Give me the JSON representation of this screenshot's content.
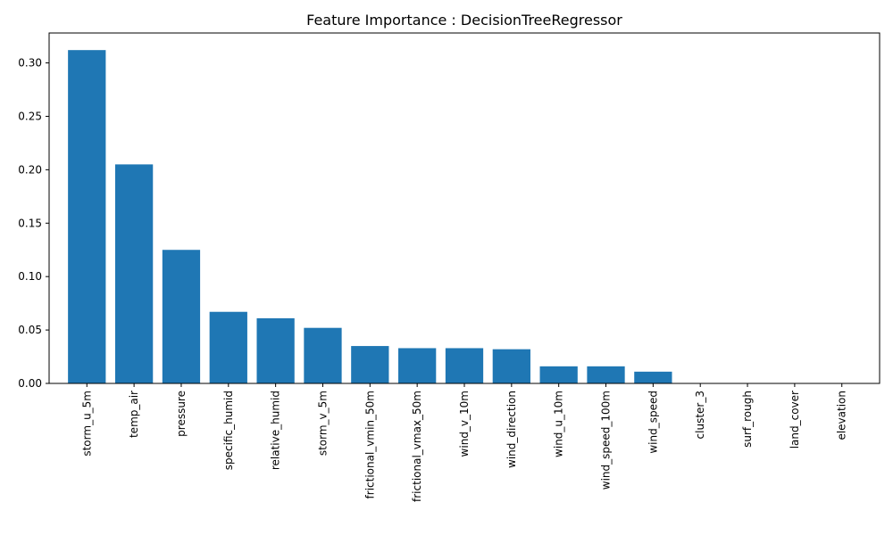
{
  "chart_data": {
    "type": "bar",
    "title": "Feature Importance : DecisionTreeRegressor",
    "xlabel": "",
    "ylabel": "",
    "categories": [
      "storm_u_5m",
      "temp_air",
      "pressure",
      "specific_humid",
      "relative_humid",
      "storm_v_5m",
      "frictional_vmin_50m",
      "frictional_vmax_50m",
      "wind_v_10m",
      "wind_direction",
      "wind_u_10m",
      "wind_speed_100m",
      "wind_speed",
      "cluster_3",
      "surf_rough",
      "land_cover",
      "elevation"
    ],
    "values": [
      0.312,
      0.205,
      0.125,
      0.067,
      0.061,
      0.052,
      0.035,
      0.033,
      0.033,
      0.032,
      0.016,
      0.016,
      0.011,
      0.0,
      0.0,
      0.0,
      0.0
    ],
    "ylim": [
      0,
      0.328
    ],
    "yticks": [
      0.0,
      0.05,
      0.1,
      0.15,
      0.2,
      0.25,
      0.3
    ],
    "ytick_labels": [
      "0.00",
      "0.05",
      "0.10",
      "0.15",
      "0.20",
      "0.25",
      "0.30"
    ],
    "bar_color": "#1f77b4",
    "grid": false,
    "legend": "none"
  }
}
